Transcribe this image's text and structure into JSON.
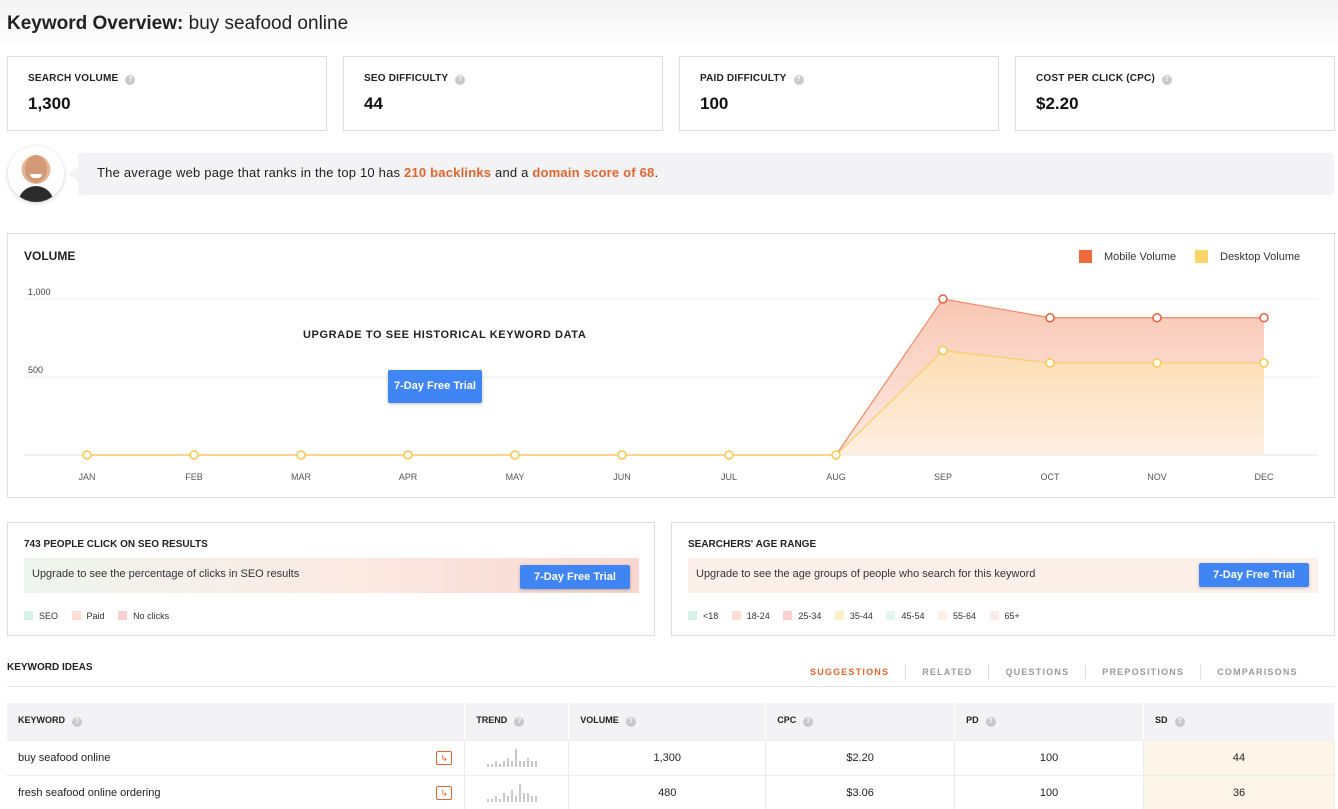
{
  "header": {
    "title_prefix": "Keyword Overview:",
    "keyword": "buy seafood online"
  },
  "metrics": [
    {
      "label": "SEARCH VOLUME",
      "value": "1,300"
    },
    {
      "label": "SEO DIFFICULTY",
      "value": "44"
    },
    {
      "label": "PAID DIFFICULTY",
      "value": "100"
    },
    {
      "label": "COST PER CLICK (CPC)",
      "value": "$2.20"
    }
  ],
  "tip": {
    "text_before": "The average web page that ranks in the top 10 has ",
    "backlinks": "210 backlinks",
    "text_mid": " and a ",
    "domain_score": "domain score of 68",
    "text_after": "."
  },
  "volume_card": {
    "title": "VOLUME",
    "legend_mobile": "Mobile Volume",
    "legend_desktop": "Desktop Volume",
    "upgrade_text": "UPGRADE TO SEE HISTORICAL KEYWORD DATA",
    "trial_button": "7-Day Free Trial"
  },
  "colors": {
    "accent": "#e2642f",
    "mobile": "#ee6a3c",
    "desktop": "#fdd46a",
    "button": "#3f85f4"
  },
  "chart_data": {
    "type": "area",
    "title": "VOLUME",
    "categories": [
      "JAN",
      "FEB",
      "MAR",
      "APR",
      "MAY",
      "JUN",
      "JUL",
      "AUG",
      "SEP",
      "OCT",
      "NOV",
      "DEC"
    ],
    "series": [
      {
        "name": "Mobile Volume",
        "values": [
          0,
          0,
          0,
          0,
          0,
          0,
          0,
          0,
          1000,
          880,
          880,
          880
        ]
      },
      {
        "name": "Desktop Volume",
        "values": [
          0,
          0,
          0,
          0,
          0,
          0,
          0,
          0,
          670,
          590,
          590,
          590
        ]
      }
    ],
    "y_ticks": [
      {
        "value": 500,
        "label": "500"
      },
      {
        "value": 1000,
        "label": "1,000"
      }
    ],
    "ylim": [
      0,
      1000
    ],
    "grid": true,
    "legend": "top-right"
  },
  "seo_clicks": {
    "title": "743 PEOPLE CLICK ON SEO RESULTS",
    "upgrade_text": "Upgrade to see the percentage of clicks in SEO results",
    "trial_button": "7-Day Free Trial",
    "legend": [
      {
        "label": "SEO",
        "color": "#d4f3e4"
      },
      {
        "label": "Paid",
        "color": "#fde0d3"
      },
      {
        "label": "No clicks",
        "color": "#f9d0cf"
      }
    ]
  },
  "age_range": {
    "title": "SEARCHERS' AGE RANGE",
    "upgrade_text": "Upgrade to see the age groups of people who search for this keyword",
    "trial_button": "7-Day Free Trial",
    "legend": [
      {
        "label": "<18",
        "color": "#d4f3e4"
      },
      {
        "label": "18-24",
        "color": "#fde0d3"
      },
      {
        "label": "25-34",
        "color": "#f9d0cf"
      },
      {
        "label": "35-44",
        "color": "#fdf0c8"
      },
      {
        "label": "45-54",
        "color": "#e2f6ee"
      },
      {
        "label": "55-64",
        "color": "#fdf1e6"
      },
      {
        "label": "65+",
        "color": "#fbeaea"
      }
    ]
  },
  "keyword_ideas": {
    "title": "KEYWORD IDEAS",
    "tabs": [
      "SUGGESTIONS",
      "RELATED",
      "QUESTIONS",
      "PREPOSITIONS",
      "COMPARISONS"
    ],
    "columns": [
      "KEYWORD",
      "TREND",
      "VOLUME",
      "CPC",
      "PD",
      "SD"
    ],
    "rows": [
      {
        "keyword": "buy seafood online",
        "volume": "1,300",
        "cpc": "$2.20",
        "pd": "100",
        "sd": "44",
        "trend": [
          1,
          1,
          2,
          1,
          2,
          3,
          2,
          6,
          2,
          2,
          3,
          2,
          2
        ]
      },
      {
        "keyword": "fresh seafood online ordering",
        "volume": "480",
        "cpc": "$3.06",
        "pd": "100",
        "sd": "36",
        "trend": [
          1,
          1,
          2,
          1,
          3,
          2,
          4,
          2,
          6,
          3,
          3,
          2,
          2
        ]
      }
    ]
  }
}
